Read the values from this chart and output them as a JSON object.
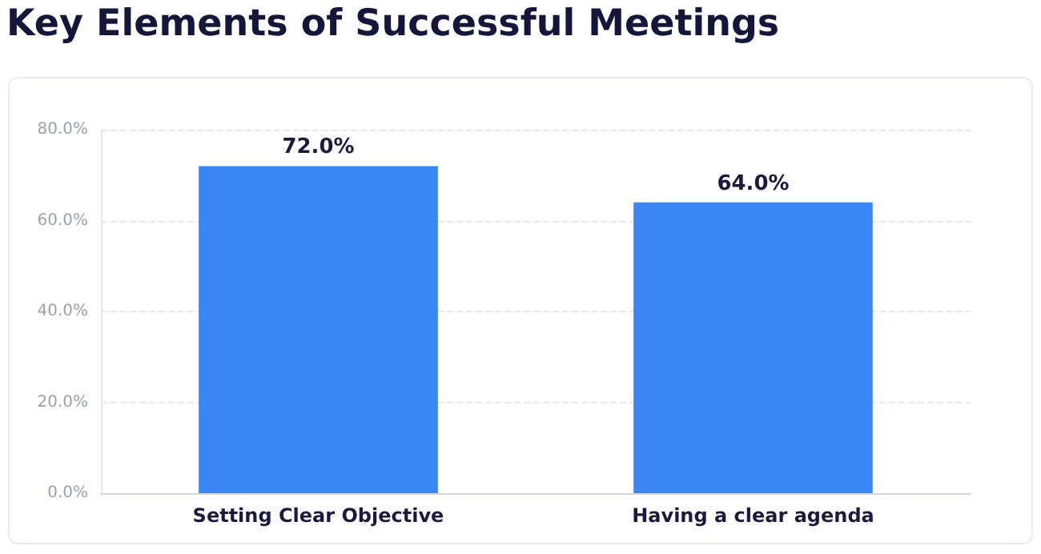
{
  "chart_data": {
    "type": "bar",
    "title": "Key Elements of Successful Meetings",
    "categories": [
      "Setting Clear Objective",
      "Having a clear agenda"
    ],
    "values": [
      72,
      64
    ],
    "color": "#3b86f5",
    "value_labels": [
      "72.0%",
      "64.0%"
    ],
    "ylim": [
      0,
      80
    ],
    "yticks": [
      {
        "value": 0,
        "label": "0.0%"
      },
      {
        "value": 20,
        "label": "20.0%"
      },
      {
        "value": 40,
        "label": "40.0%"
      },
      {
        "value": 60,
        "label": "60.0%"
      },
      {
        "value": 80,
        "label": "80.0%"
      }
    ],
    "grid": "y"
  }
}
